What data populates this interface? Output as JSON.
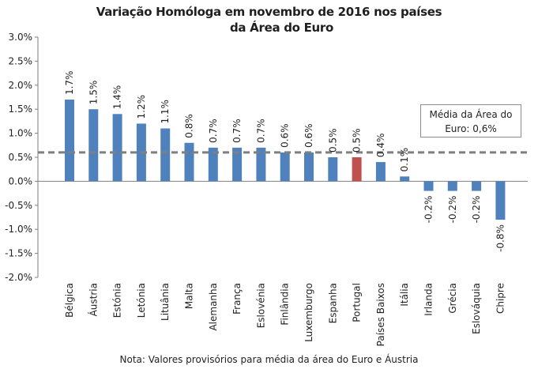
{
  "chart_data": {
    "type": "bar",
    "title_line1": "Variação Homóloga em novembro de 2016 nos países",
    "title_line2": "da Área do Euro",
    "categories": [
      "Bélgica",
      "Áustria",
      "Estónia",
      "Letónia",
      "Lituânia",
      "Malta",
      "Alemanha",
      "França",
      "Eslovénia",
      "Finlândia",
      "Luxemburgo",
      "Espanha",
      "Portugal",
      "Países Baixos",
      "Itália",
      "Irlanda",
      "Grécia",
      "Eslováquia",
      "Chipre"
    ],
    "values": [
      1.7,
      1.5,
      1.4,
      1.2,
      1.1,
      0.8,
      0.7,
      0.7,
      0.7,
      0.6,
      0.6,
      0.5,
      0.5,
      0.4,
      0.1,
      -0.2,
      -0.2,
      -0.2,
      -0.8
    ],
    "data_labels": [
      "1.7%",
      "1.5%",
      "1.4%",
      "1.2%",
      "1.1%",
      "0.8%",
      "0.7%",
      "0.7%",
      "0.7%",
      "0.6%",
      "0.6%",
      "0.5%",
      "0.5%",
      "0.4%",
      "0.1%",
      "-0.2%",
      "-0.2%",
      "-0.2%",
      "-0.8%"
    ],
    "highlight": "Portugal",
    "ylim": [
      -2.0,
      3.0
    ],
    "yticks": [
      3.0,
      2.5,
      2.0,
      1.5,
      1.0,
      0.5,
      0.0,
      -0.5,
      -1.0,
      -1.5,
      -2.0
    ],
    "ytick_labels": [
      "3.0%",
      "2.5%",
      "2.0%",
      "1.5%",
      "1.0%",
      "0.5%",
      "0.0%",
      "-0.5%",
      "-1.0%",
      "-1.5%",
      "-2.0%"
    ],
    "average": 0.6,
    "average_label_line1": "Média da Área do",
    "average_label_line2": "Euro: 0,6%",
    "note": "Nota: Valores provisórios para média da área do Euro e Áustria",
    "colors": {
      "bar": "#4f81bd",
      "highlight": "#c0504d",
      "average_line": "#7f7f7f",
      "axis": "#7f7f7f"
    }
  }
}
